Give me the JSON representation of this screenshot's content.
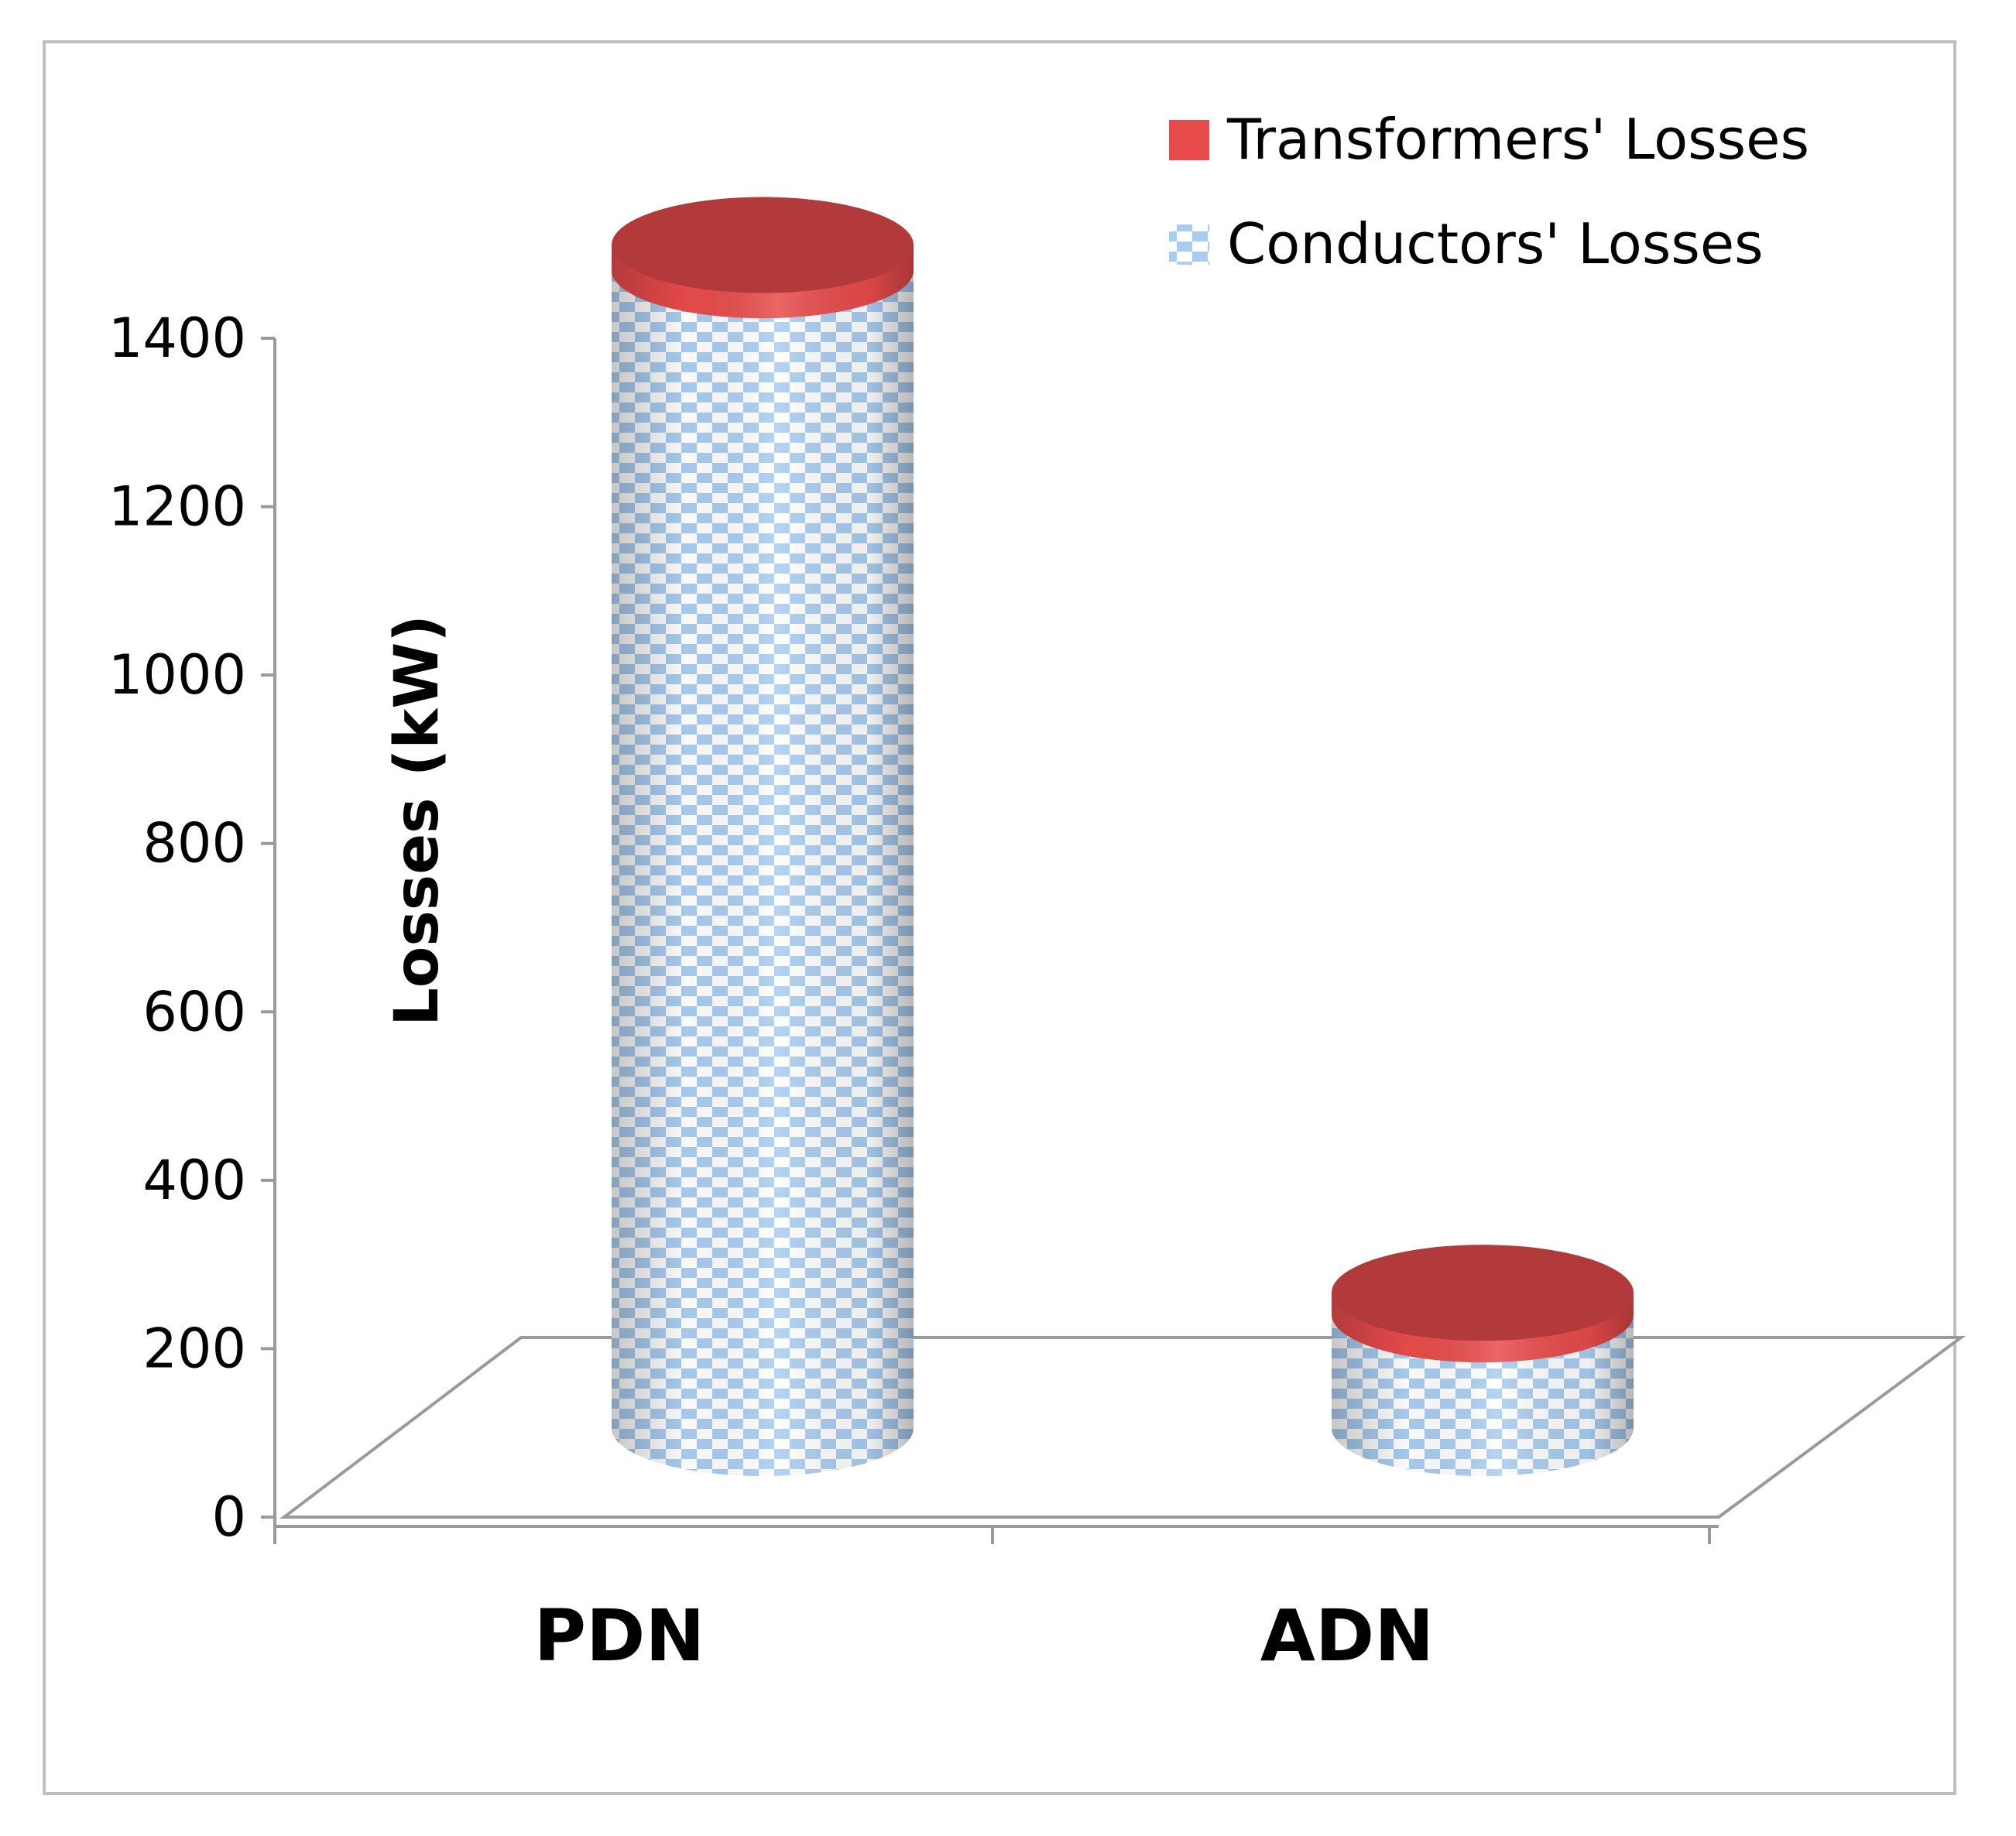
{
  "chart_data": {
    "type": "bar",
    "title": "",
    "xlabel": "",
    "ylabel": "Losses (kW)",
    "categories": [
      "PDN",
      "ADN"
    ],
    "series": [
      {
        "name": "Conductors' Losses",
        "values": [
          1375,
          135
        ]
      },
      {
        "name": "Transformers' Losses",
        "values": [
          30,
          25
        ]
      }
    ],
    "ylim": [
      0,
      1400
    ],
    "yticks": [
      "0",
      "200",
      "400",
      "600",
      "800",
      "1000",
      "1200",
      "1400"
    ],
    "stacked": true,
    "legend": "top-right",
    "grid": false,
    "colors": {
      "transformers": "#e84b4b",
      "transformers_dark": "#b23a3a",
      "conductors": "#a9cdf0",
      "axis": "#9a9a9a"
    }
  }
}
